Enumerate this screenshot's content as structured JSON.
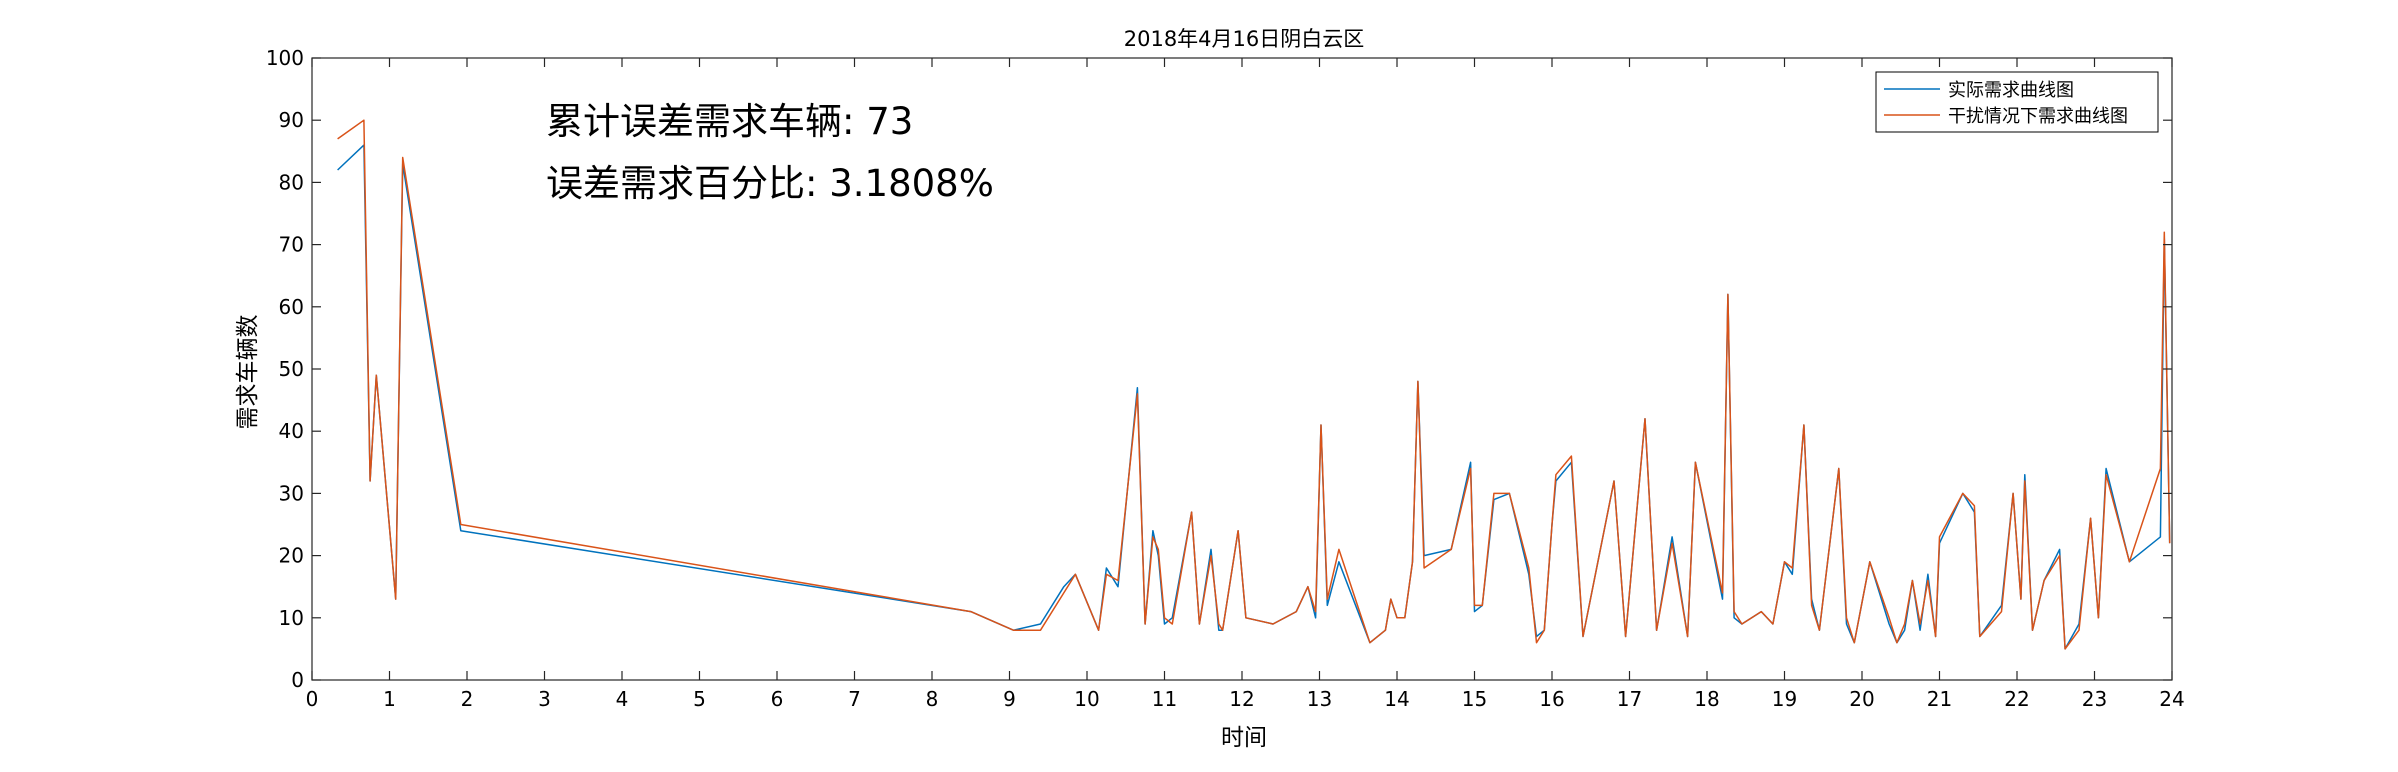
{
  "chart_data": {
    "type": "line",
    "title": "2018年4月16日阴白云区",
    "xlabel": "时间",
    "ylabel": "需求车辆数",
    "xlim": [
      0,
      24
    ],
    "ylim": [
      0,
      100
    ],
    "xticks": [
      0,
      1,
      2,
      3,
      4,
      5,
      6,
      7,
      8,
      9,
      10,
      11,
      12,
      13,
      14,
      15,
      16,
      17,
      18,
      19,
      20,
      21,
      22,
      23,
      24
    ],
    "yticks": [
      0,
      10,
      20,
      30,
      40,
      50,
      60,
      70,
      80,
      90,
      100
    ],
    "grid": false,
    "legend_position": "top-right",
    "annotations": [
      "累计误差需求车辆: 73",
      "误差需求百分比: 3.1808%"
    ],
    "series": [
      {
        "name": "实际需求曲线图",
        "color": "#0072BD",
        "points": [
          [
            0.33,
            82
          ],
          [
            0.67,
            86
          ],
          [
            0.75,
            32
          ],
          [
            0.83,
            49
          ],
          [
            1.08,
            13
          ],
          [
            1.17,
            83
          ],
          [
            1.92,
            24
          ],
          [
            8.5,
            11
          ],
          [
            9.05,
            8
          ],
          [
            9.4,
            9
          ],
          [
            9.7,
            15
          ],
          [
            9.85,
            17
          ],
          [
            10.15,
            8
          ],
          [
            10.25,
            18
          ],
          [
            10.4,
            15
          ],
          [
            10.65,
            47
          ],
          [
            10.75,
            9
          ],
          [
            10.85,
            24
          ],
          [
            10.92,
            20
          ],
          [
            11.0,
            9
          ],
          [
            11.1,
            10
          ],
          [
            11.35,
            27
          ],
          [
            11.45,
            9
          ],
          [
            11.6,
            21
          ],
          [
            11.7,
            8
          ],
          [
            11.75,
            8
          ],
          [
            11.95,
            24
          ],
          [
            12.05,
            10
          ],
          [
            12.4,
            9
          ],
          [
            12.7,
            11
          ],
          [
            12.85,
            15
          ],
          [
            12.95,
            10
          ],
          [
            13.02,
            41
          ],
          [
            13.1,
            12
          ],
          [
            13.25,
            19
          ],
          [
            13.65,
            6
          ],
          [
            13.85,
            8
          ],
          [
            13.92,
            13
          ],
          [
            14.0,
            10
          ],
          [
            14.1,
            10
          ],
          [
            14.2,
            19
          ],
          [
            14.27,
            48
          ],
          [
            14.35,
            20
          ],
          [
            14.7,
            21
          ],
          [
            14.95,
            35
          ],
          [
            15.0,
            11
          ],
          [
            15.1,
            12
          ],
          [
            15.25,
            29
          ],
          [
            15.45,
            30
          ],
          [
            15.7,
            17
          ],
          [
            15.8,
            7
          ],
          [
            15.9,
            8
          ],
          [
            16.0,
            25
          ],
          [
            16.05,
            32
          ],
          [
            16.25,
            35
          ],
          [
            16.4,
            7
          ],
          [
            16.8,
            32
          ],
          [
            16.95,
            7
          ],
          [
            17.2,
            42
          ],
          [
            17.35,
            8
          ],
          [
            17.55,
            23
          ],
          [
            17.75,
            7
          ],
          [
            17.85,
            35
          ],
          [
            18.2,
            13
          ],
          [
            18.27,
            62
          ],
          [
            18.35,
            10
          ],
          [
            18.45,
            9
          ],
          [
            18.7,
            11
          ],
          [
            18.85,
            9
          ],
          [
            19.0,
            19
          ],
          [
            19.1,
            17
          ],
          [
            19.25,
            41
          ],
          [
            19.35,
            13
          ],
          [
            19.45,
            8
          ],
          [
            19.7,
            34
          ],
          [
            19.8,
            9
          ],
          [
            19.9,
            6
          ],
          [
            20.1,
            19
          ],
          [
            20.35,
            9
          ],
          [
            20.45,
            6
          ],
          [
            20.55,
            8
          ],
          [
            20.65,
            16
          ],
          [
            20.75,
            8
          ],
          [
            20.85,
            17
          ],
          [
            20.95,
            7
          ],
          [
            21.0,
            22
          ],
          [
            21.3,
            30
          ],
          [
            21.45,
            27
          ],
          [
            21.52,
            7
          ],
          [
            21.8,
            12
          ],
          [
            21.95,
            30
          ],
          [
            22.05,
            13
          ],
          [
            22.1,
            33
          ],
          [
            22.2,
            8
          ],
          [
            22.35,
            16
          ],
          [
            22.55,
            21
          ],
          [
            22.62,
            5
          ],
          [
            22.8,
            9
          ],
          [
            22.95,
            26
          ],
          [
            23.05,
            10
          ],
          [
            23.15,
            34
          ],
          [
            23.45,
            19
          ],
          [
            23.85,
            23
          ],
          [
            23.9,
            71
          ],
          [
            23.97,
            22
          ]
        ]
      },
      {
        "name": "干扰情况下需求曲线图",
        "color": "#D95319",
        "points": [
          [
            0.33,
            87
          ],
          [
            0.67,
            90
          ],
          [
            0.75,
            32
          ],
          [
            0.83,
            49
          ],
          [
            1.08,
            13
          ],
          [
            1.17,
            84
          ],
          [
            1.92,
            25
          ],
          [
            8.5,
            11
          ],
          [
            9.05,
            8
          ],
          [
            9.4,
            8
          ],
          [
            9.7,
            14
          ],
          [
            9.85,
            17
          ],
          [
            10.15,
            8
          ],
          [
            10.25,
            17
          ],
          [
            10.4,
            16
          ],
          [
            10.65,
            46
          ],
          [
            10.75,
            9
          ],
          [
            10.85,
            23
          ],
          [
            10.92,
            21
          ],
          [
            11.0,
            10
          ],
          [
            11.1,
            9
          ],
          [
            11.35,
            27
          ],
          [
            11.45,
            9
          ],
          [
            11.6,
            20
          ],
          [
            11.7,
            9
          ],
          [
            11.75,
            8
          ],
          [
            11.95,
            24
          ],
          [
            12.05,
            10
          ],
          [
            12.4,
            9
          ],
          [
            12.7,
            11
          ],
          [
            12.85,
            15
          ],
          [
            12.95,
            11
          ],
          [
            13.02,
            41
          ],
          [
            13.1,
            13
          ],
          [
            13.25,
            21
          ],
          [
            13.65,
            6
          ],
          [
            13.85,
            8
          ],
          [
            13.92,
            13
          ],
          [
            14.0,
            10
          ],
          [
            14.1,
            10
          ],
          [
            14.2,
            19
          ],
          [
            14.27,
            48
          ],
          [
            14.35,
            18
          ],
          [
            14.7,
            21
          ],
          [
            14.95,
            34
          ],
          [
            15.0,
            12
          ],
          [
            15.1,
            12
          ],
          [
            15.25,
            30
          ],
          [
            15.45,
            30
          ],
          [
            15.7,
            18
          ],
          [
            15.8,
            6
          ],
          [
            15.9,
            8
          ],
          [
            16.0,
            25
          ],
          [
            16.05,
            33
          ],
          [
            16.25,
            36
          ],
          [
            16.4,
            7
          ],
          [
            16.8,
            32
          ],
          [
            16.95,
            7
          ],
          [
            17.2,
            42
          ],
          [
            17.35,
            8
          ],
          [
            17.55,
            22
          ],
          [
            17.75,
            7
          ],
          [
            17.85,
            35
          ],
          [
            18.2,
            14
          ],
          [
            18.27,
            62
          ],
          [
            18.35,
            11
          ],
          [
            18.45,
            9
          ],
          [
            18.7,
            11
          ],
          [
            18.85,
            9
          ],
          [
            19.0,
            19
          ],
          [
            19.1,
            18
          ],
          [
            19.25,
            41
          ],
          [
            19.35,
            12
          ],
          [
            19.45,
            8
          ],
          [
            19.7,
            34
          ],
          [
            19.8,
            10
          ],
          [
            19.9,
            6
          ],
          [
            20.1,
            19
          ],
          [
            20.35,
            10
          ],
          [
            20.45,
            6
          ],
          [
            20.55,
            9
          ],
          [
            20.65,
            16
          ],
          [
            20.75,
            9
          ],
          [
            20.85,
            16
          ],
          [
            20.95,
            7
          ],
          [
            21.0,
            23
          ],
          [
            21.3,
            30
          ],
          [
            21.45,
            28
          ],
          [
            21.52,
            7
          ],
          [
            21.8,
            11
          ],
          [
            21.95,
            30
          ],
          [
            22.05,
            13
          ],
          [
            22.1,
            32
          ],
          [
            22.2,
            8
          ],
          [
            22.35,
            16
          ],
          [
            22.55,
            20
          ],
          [
            22.62,
            5
          ],
          [
            22.8,
            8
          ],
          [
            22.95,
            26
          ],
          [
            23.05,
            10
          ],
          [
            23.15,
            33
          ],
          [
            23.45,
            19
          ],
          [
            23.85,
            34
          ],
          [
            23.9,
            72
          ],
          [
            23.97,
            22
          ]
        ]
      }
    ]
  }
}
